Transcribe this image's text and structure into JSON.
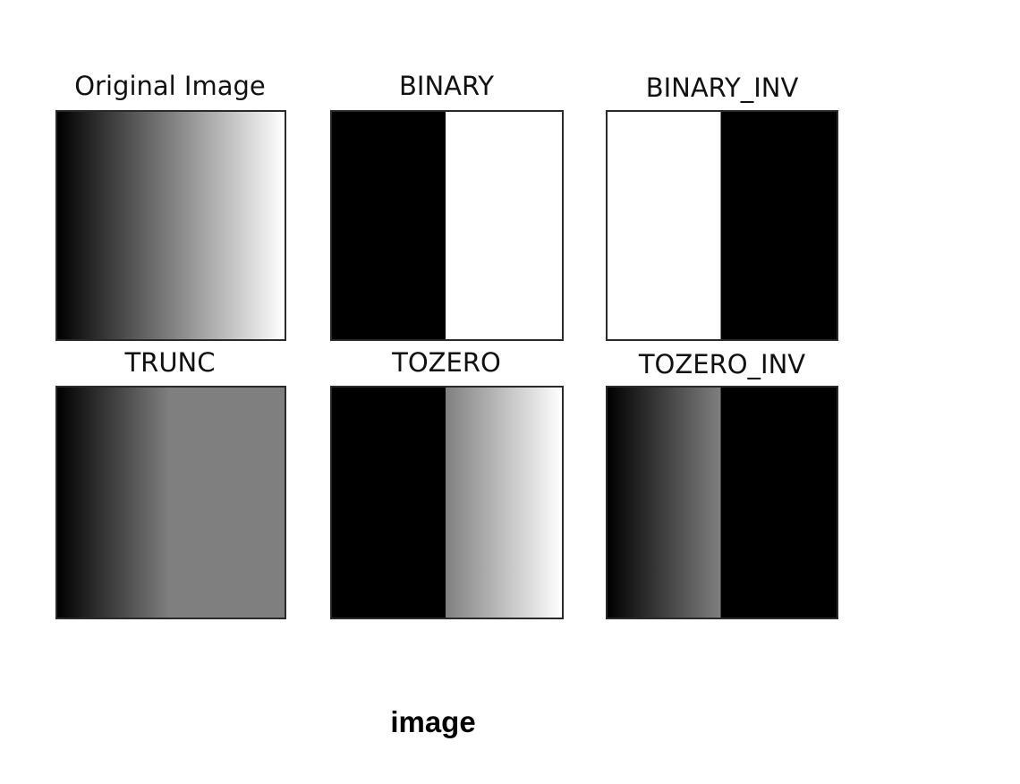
{
  "panels": [
    {
      "title": "Original Image",
      "threshold": "none",
      "fill": "gradient"
    },
    {
      "title": "BINARY",
      "threshold": "binary"
    },
    {
      "title": "BINARY_INV",
      "threshold": "binary_inv"
    },
    {
      "title": "TRUNC",
      "threshold": "trunc"
    },
    {
      "title": "TOZERO",
      "threshold": "tozero"
    },
    {
      "title": "TOZERO_INV",
      "threshold": "tozero_inv"
    }
  ],
  "caption": "image"
}
